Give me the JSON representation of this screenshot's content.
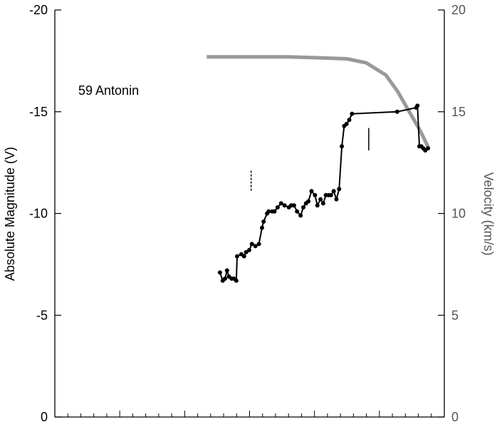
{
  "chart_data": {
    "type": "line",
    "ylabel": "Absolute Magnitude (V)",
    "ylabel_right": "Velocity (km/s)",
    "annotation": "59 Antonin",
    "y_left": {
      "lim": [
        0,
        -20
      ],
      "ticks": [
        0,
        -5,
        -10,
        -15,
        -20
      ],
      "tick_labels": [
        "0",
        "-5",
        "-10",
        "-15",
        "-20"
      ]
    },
    "y_right": {
      "lim": [
        0,
        20
      ],
      "ticks": [
        0,
        5,
        10,
        15,
        20
      ],
      "tick_labels": [
        "0",
        "5",
        "10",
        "15",
        "20"
      ]
    },
    "x_range": [
      0,
      100
    ],
    "x_minor_ticks": 29,
    "x_major_every": 5,
    "grid": false,
    "colors": {
      "magnitude": "#000000",
      "velocity": "#999999",
      "right_axis": "#555555"
    },
    "series": [
      {
        "axis": "left",
        "color": "#000000",
        "marker": "circle",
        "x": [
          42.4,
          43.1,
          43.7,
          44.2,
          44.7,
          45.4,
          46.0,
          46.6,
          46.8,
          47.9,
          48.6,
          49.1,
          49.9,
          50.6,
          51.5,
          52.4,
          53.2,
          53.6,
          54.5,
          54.9,
          55.8,
          56.4,
          57.2,
          58.1,
          59.0,
          60.1,
          60.7,
          61.4,
          62.2,
          63.1,
          63.8,
          64.5,
          65.1,
          65.9,
          66.8,
          67.4,
          68.2,
          68.9,
          69.6,
          70.3,
          70.9,
          71.6,
          72.3,
          73.0,
          73.7,
          74.3,
          74.9,
          75.6,
          76.3,
          87.9,
          92.8,
          93.1,
          93.6,
          94.1,
          94.6,
          95.1,
          95.8
        ],
        "y": [
          -7.1,
          -6.7,
          -6.8,
          -7.2,
          -6.9,
          -6.8,
          -6.8,
          -6.7,
          -7.9,
          -8.0,
          -7.9,
          -8.1,
          -8.2,
          -8.5,
          -8.4,
          -8.5,
          -9.3,
          -9.6,
          -10.0,
          -10.1,
          -10.1,
          -10.1,
          -10.3,
          -10.5,
          -10.4,
          -10.3,
          -10.4,
          -10.4,
          -10.1,
          -9.9,
          -10.3,
          -10.5,
          -10.6,
          -11.1,
          -10.9,
          -10.4,
          -10.7,
          -10.5,
          -10.9,
          -10.9,
          -10.9,
          -11.1,
          -10.7,
          -11.2,
          -13.3,
          -14.3,
          -14.4,
          -14.6,
          -14.9,
          -15.0,
          -15.2,
          -15.3,
          -13.3,
          -13.3,
          -13.2,
          -13.1,
          -13.2
        ],
        "y_note": "magnitudes (negative = brighter)"
      },
      {
        "axis": "right",
        "color": "#999999",
        "marker": "none",
        "x": [
          39,
          50,
          60,
          68,
          75,
          80,
          85,
          88,
          91,
          94,
          96
        ],
        "y": [
          17.7,
          17.7,
          17.7,
          17.65,
          17.6,
          17.4,
          16.8,
          16.0,
          15.0,
          14.0,
          13.2
        ]
      }
    ],
    "markers": [
      {
        "style": "dashed",
        "x": 50.4,
        "y_top": -12.1,
        "y_bottom": -11.1
      },
      {
        "style": "solid",
        "x": 80.6,
        "y_top": -14.2,
        "y_bottom": -13.1
      }
    ]
  }
}
